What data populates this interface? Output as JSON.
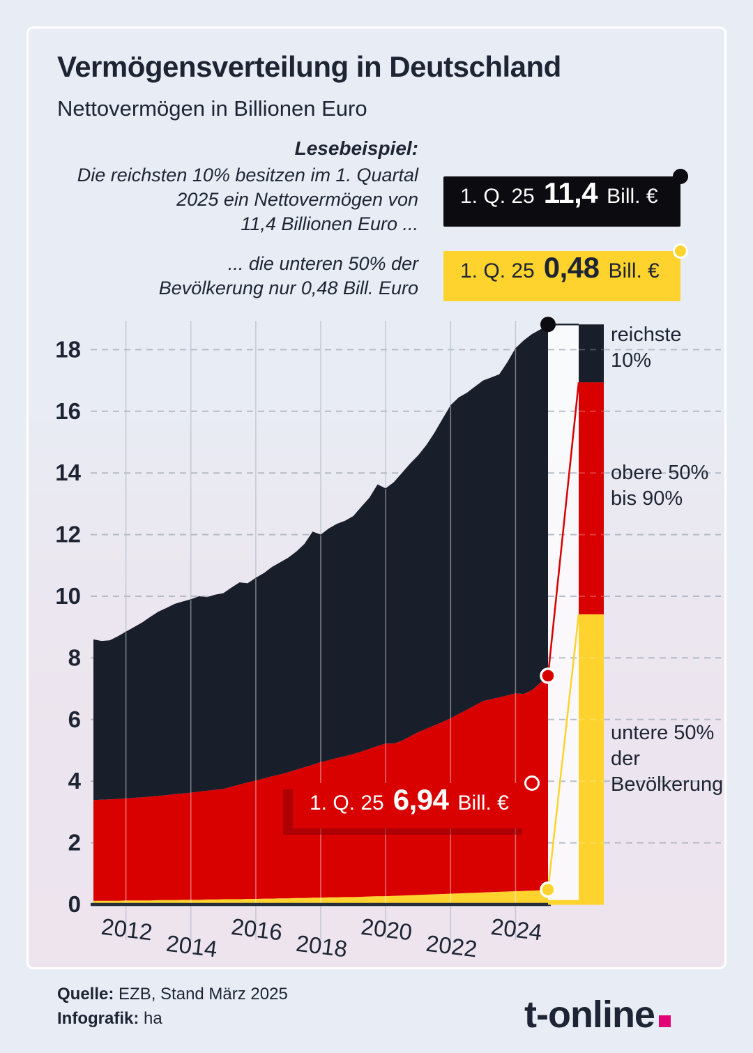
{
  "header": {
    "title": "Vermögensverteilung in Deutschland",
    "subtitle": "Nettovermögen in Billionen Euro"
  },
  "lesebeispiel": {
    "heading": "Lesebeispiel:",
    "para1": "Die reichsten 10% besitzen im 1. Quartal\n2025 ein Nettovermögen von\n11,4 Billionen Euro ...",
    "para2": "... die unteren 50% der\nBevölkerung nur 0,48 Bill. Euro"
  },
  "callouts": {
    "reichste": {
      "period": "1. Q. 25",
      "value": "11,4",
      "unit": "Bill. €"
    },
    "untere": {
      "period": "1. Q. 25",
      "value": "0,48",
      "unit": "Bill. €"
    },
    "obere": {
      "period": "1. Q. 25",
      "value": "6,94",
      "unit": "Bill. €"
    }
  },
  "legend": {
    "reichste": "reichste\n10%",
    "obere": "obere 50%\nbis 90%",
    "untere": "untere 50%\nder\nBevölkerung"
  },
  "footer": {
    "source_label": "Quelle:",
    "source": "EZB, Stand März 2025",
    "credit_label": "Infografik:",
    "credit": "ha",
    "logo_text": "t-online"
  },
  "colors": {
    "dark": "#191e2b",
    "dark_text": "#1d2433",
    "red": "#d90000",
    "yellow": "#ffd32e",
    "magenta": "#e20074",
    "grid": "#a8b0bd",
    "axis": "#262c3a",
    "white": "#ffffff"
  },
  "chart_data": {
    "type": "area",
    "stacked": true,
    "title": "Vermögensverteilung in Deutschland",
    "ylabel": "Nettovermögen in Billionen Euro",
    "x_start": 2011.0,
    "x_end": 2025.0,
    "x_step": 0.25,
    "ylim": [
      0,
      19
    ],
    "ytick_values": [
      0,
      2,
      4,
      6,
      8,
      10,
      12,
      14,
      16,
      18
    ],
    "xtick_values": [
      2012,
      2014,
      2016,
      2018,
      2020,
      2022,
      2024
    ],
    "grid": true,
    "legend_position": "right",
    "series": [
      {
        "name": "untere 50% der Bevölkerung",
        "color": "#ffd32e",
        "values": [
          0.12,
          0.12,
          0.12,
          0.12,
          0.13,
          0.13,
          0.13,
          0.13,
          0.14,
          0.14,
          0.14,
          0.15,
          0.15,
          0.15,
          0.16,
          0.16,
          0.17,
          0.17,
          0.17,
          0.18,
          0.18,
          0.19,
          0.19,
          0.2,
          0.2,
          0.21,
          0.21,
          0.22,
          0.22,
          0.23,
          0.23,
          0.24,
          0.24,
          0.25,
          0.26,
          0.27,
          0.27,
          0.28,
          0.29,
          0.3,
          0.31,
          0.32,
          0.33,
          0.34,
          0.35,
          0.36,
          0.37,
          0.38,
          0.39,
          0.4,
          0.41,
          0.42,
          0.43,
          0.44,
          0.45,
          0.46,
          0.48
        ]
      },
      {
        "name": "obere 50% bis 90%",
        "color": "#d90000",
        "values": [
          3.27,
          3.28,
          3.29,
          3.3,
          3.31,
          3.33,
          3.35,
          3.37,
          3.38,
          3.41,
          3.44,
          3.45,
          3.48,
          3.51,
          3.53,
          3.56,
          3.58,
          3.65,
          3.72,
          3.78,
          3.84,
          3.9,
          3.97,
          4.02,
          4.09,
          4.16,
          4.24,
          4.31,
          4.4,
          4.45,
          4.52,
          4.57,
          4.64,
          4.71,
          4.79,
          4.87,
          4.95,
          4.94,
          5.02,
          5.15,
          5.28,
          5.38,
          5.48,
          5.58,
          5.69,
          5.82,
          5.95,
          6.08,
          6.21,
          6.26,
          6.31,
          6.36,
          6.42,
          6.39,
          6.5,
          6.72,
          6.94
        ]
      },
      {
        "name": "reichste 10%",
        "color": "#191e2b",
        "values": [
          5.21,
          5.15,
          5.16,
          5.28,
          5.41,
          5.54,
          5.67,
          5.83,
          5.98,
          6.07,
          6.17,
          6.23,
          6.27,
          6.34,
          6.28,
          6.33,
          6.35,
          6.46,
          6.56,
          6.46,
          6.58,
          6.66,
          6.79,
          6.88,
          6.96,
          7.08,
          7.25,
          7.57,
          7.38,
          7.52,
          7.6,
          7.64,
          7.72,
          7.94,
          8.15,
          8.49,
          8.28,
          8.48,
          8.69,
          8.85,
          8.98,
          9.2,
          9.49,
          9.83,
          10.16,
          10.27,
          10.28,
          10.34,
          10.4,
          10.44,
          10.48,
          10.82,
          11.2,
          11.47,
          11.55,
          11.47,
          11.4
        ]
      }
    ],
    "latest_quarter": {
      "label": "1. Q. 25",
      "untere_50": 0.48,
      "obere_50_bis_90": 6.94,
      "reichste_10": 11.4,
      "total": 18.82
    },
    "population_bar_shares": [
      {
        "name": "reichste 10%",
        "share": 0.1,
        "color": "#191e2b"
      },
      {
        "name": "obere 50% bis 90%",
        "share": 0.4,
        "color": "#d90000"
      },
      {
        "name": "untere 50% der Bevölkerung",
        "share": 0.5,
        "color": "#ffd32e"
      }
    ]
  }
}
